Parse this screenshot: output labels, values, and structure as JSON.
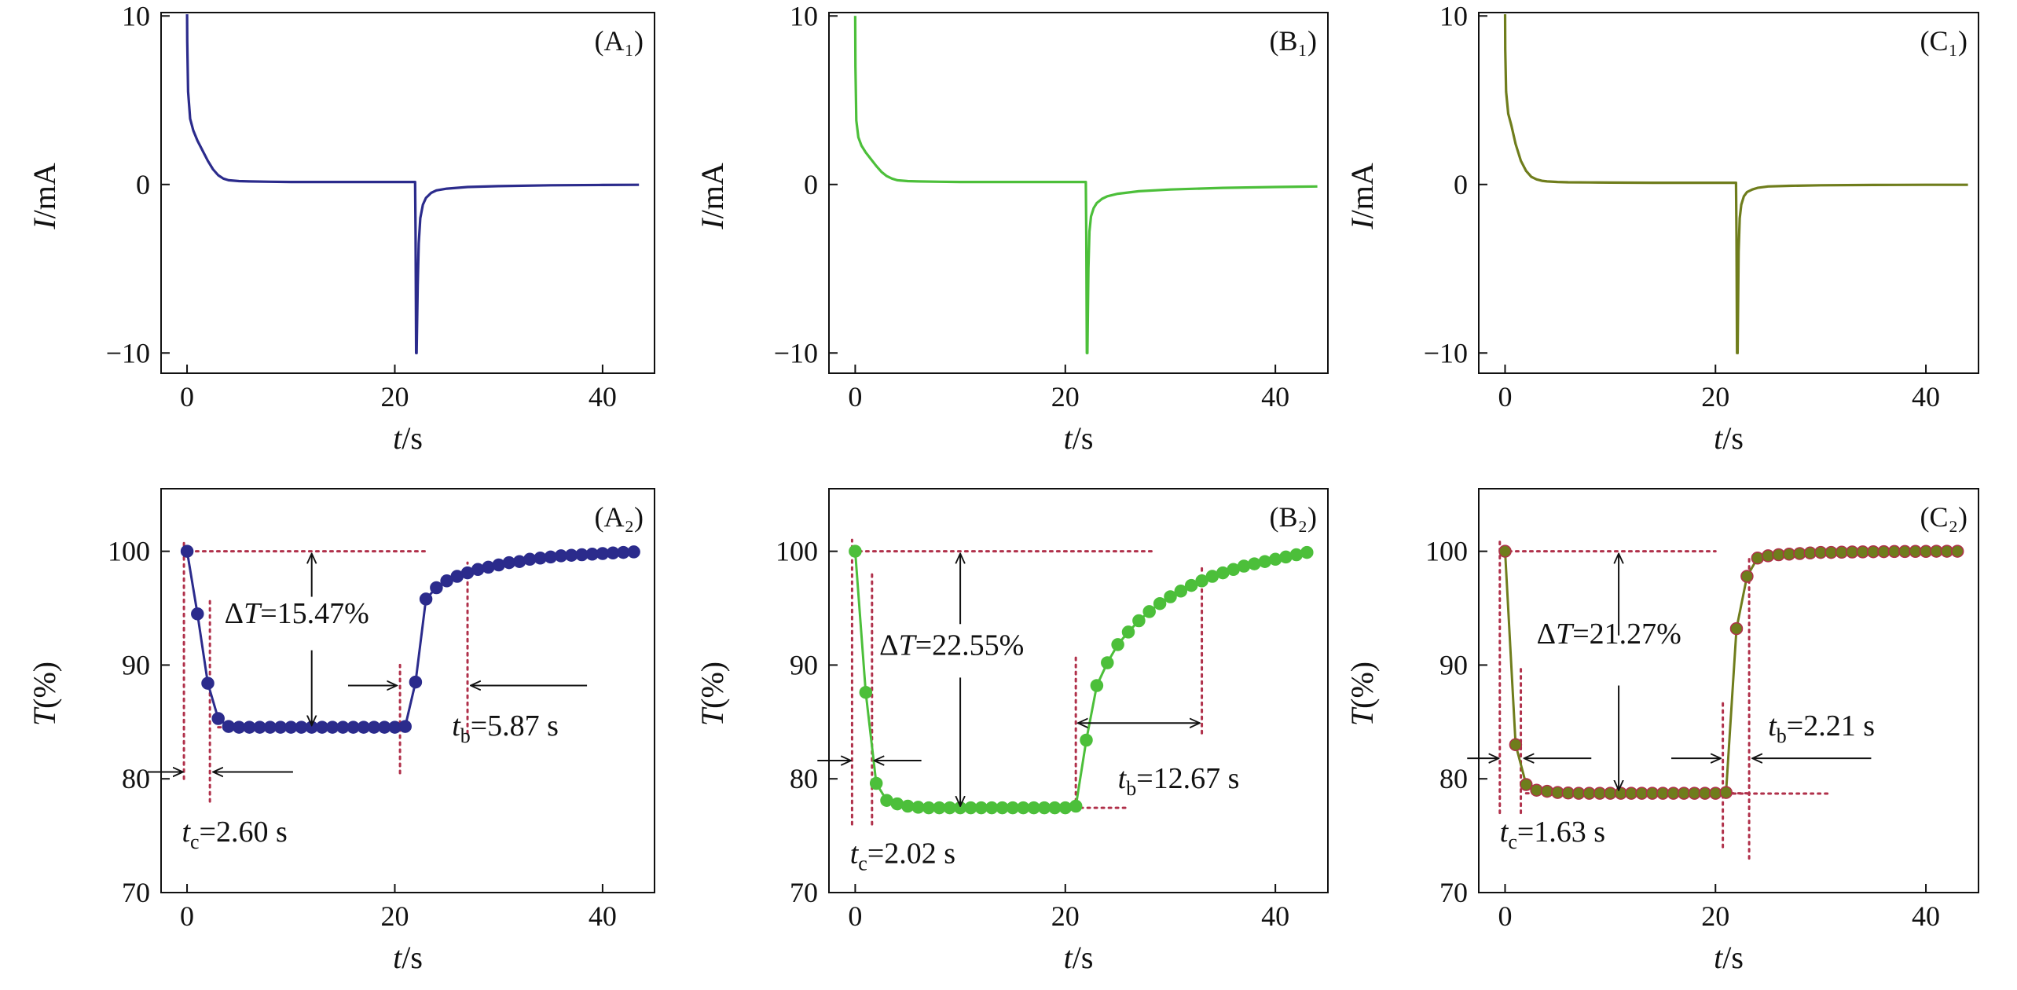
{
  "figure": {
    "colors": {
      "A": "#2b2b8c",
      "B": "#4cbf3a",
      "C": "#6f7d1c",
      "guide": "#b0304a",
      "axis": "#111111",
      "arrow": "#111111",
      "marker_edge_C": "#b0304a"
    }
  },
  "chart_data": [
    {
      "id": "A1",
      "type": "line",
      "panel_label": "(A₁)",
      "xlabel": "t/s",
      "ylabel": "I/mA",
      "xlim": [
        -2.5,
        45
      ],
      "ylim": [
        -11.2,
        10.2
      ],
      "xticks": [
        0,
        20,
        40
      ],
      "yticks": [
        -10,
        0,
        10
      ],
      "series": [
        {
          "name": "A1",
          "color_key": "A",
          "x": [
            0,
            0.02,
            0.1,
            0.3,
            0.6,
            1.0,
            1.5,
            2.0,
            2.5,
            3.0,
            3.5,
            4.0,
            5.0,
            6.0,
            8.0,
            10.0,
            14.0,
            18.0,
            21.8,
            21.95,
            22.0,
            22.05,
            22.1,
            22.2,
            22.3,
            22.45,
            22.7,
            23.0,
            23.5,
            24.0,
            25.0,
            27.0,
            30.0,
            35.0,
            40.0,
            43.5
          ],
          "y": [
            10.1,
            8.5,
            5.5,
            3.9,
            3.2,
            2.6,
            2.0,
            1.4,
            0.9,
            0.55,
            0.35,
            0.25,
            0.2,
            0.18,
            0.16,
            0.15,
            0.15,
            0.15,
            0.15,
            0.15,
            -3.0,
            -10.0,
            -10.0,
            -6.0,
            -3.5,
            -2.0,
            -1.2,
            -0.8,
            -0.5,
            -0.35,
            -0.25,
            -0.15,
            -0.1,
            -0.05,
            -0.03,
            -0.02
          ]
        }
      ]
    },
    {
      "id": "B1",
      "type": "line",
      "panel_label": "(B₁)",
      "xlabel": "t/s",
      "ylabel": "I/mA",
      "xlim": [
        -2.5,
        45
      ],
      "ylim": [
        -11.2,
        10.2
      ],
      "xticks": [
        0,
        20,
        40
      ],
      "yticks": [
        -10,
        0,
        10
      ],
      "series": [
        {
          "name": "B1",
          "color_key": "B",
          "x": [
            0,
            0.02,
            0.1,
            0.3,
            0.6,
            1.0,
            1.5,
            2.0,
            2.5,
            3.0,
            3.5,
            4.0,
            5.0,
            6.0,
            8.0,
            10.0,
            14.0,
            18.0,
            21.8,
            21.95,
            22.0,
            22.05,
            22.1,
            22.2,
            22.3,
            22.45,
            22.7,
            23.0,
            23.5,
            24.0,
            25.0,
            27.0,
            30.0,
            35.0,
            40.0,
            44.0
          ],
          "y": [
            10.0,
            7.0,
            3.8,
            2.8,
            2.3,
            1.9,
            1.5,
            1.1,
            0.75,
            0.5,
            0.35,
            0.25,
            0.2,
            0.18,
            0.16,
            0.15,
            0.15,
            0.15,
            0.15,
            0.15,
            -3.0,
            -10.0,
            -10.0,
            -5.0,
            -2.8,
            -1.9,
            -1.4,
            -1.1,
            -0.85,
            -0.7,
            -0.55,
            -0.4,
            -0.3,
            -0.2,
            -0.15,
            -0.12
          ]
        }
      ]
    },
    {
      "id": "C1",
      "type": "line",
      "panel_label": "(C₁)",
      "xlabel": "t/s",
      "ylabel": "I/mA",
      "xlim": [
        -2.5,
        45
      ],
      "ylim": [
        -11.2,
        10.2
      ],
      "xticks": [
        0,
        20,
        40
      ],
      "yticks": [
        -10,
        0,
        10
      ],
      "series": [
        {
          "name": "C1",
          "color_key": "C",
          "x": [
            0,
            0.02,
            0.1,
            0.3,
            0.6,
            1.0,
            1.5,
            2.0,
            2.5,
            3.0,
            3.5,
            4.0,
            5.0,
            6.0,
            8.0,
            10.0,
            14.0,
            18.0,
            21.8,
            21.95,
            22.0,
            22.05,
            22.1,
            22.2,
            22.3,
            22.45,
            22.7,
            23.0,
            23.5,
            24.0,
            25.0,
            27.0,
            30.0,
            35.0,
            40.0,
            44.0
          ],
          "y": [
            10.1,
            8.0,
            5.5,
            4.2,
            3.5,
            2.4,
            1.4,
            0.8,
            0.45,
            0.3,
            0.22,
            0.18,
            0.15,
            0.13,
            0.12,
            0.11,
            0.1,
            0.1,
            0.1,
            0.1,
            -3.0,
            -10.0,
            -10.0,
            -4.0,
            -2.0,
            -1.2,
            -0.7,
            -0.45,
            -0.3,
            -0.2,
            -0.12,
            -0.08,
            -0.05,
            -0.03,
            -0.02,
            -0.02
          ]
        }
      ]
    },
    {
      "id": "A2",
      "type": "line",
      "panel_label": "(A₂)",
      "xlabel": "t/s",
      "ylabel": "T(%)",
      "xlim": [
        -2.5,
        45
      ],
      "ylim": [
        70,
        105.5
      ],
      "xticks": [
        0,
        20,
        40
      ],
      "yticks": [
        70,
        80,
        90,
        100
      ],
      "series": [
        {
          "name": "A2",
          "color_key": "A",
          "x": [
            0,
            1,
            2,
            3,
            4,
            5,
            6,
            7,
            8,
            9,
            10,
            11,
            12,
            13,
            14,
            15,
            16,
            17,
            18,
            19,
            20,
            21,
            22,
            23,
            24,
            25,
            26,
            27,
            28,
            29,
            30,
            31,
            32,
            33,
            34,
            35,
            36,
            37,
            38,
            39,
            40,
            41,
            42,
            43
          ],
          "y": [
            100.0,
            94.5,
            88.4,
            85.3,
            84.6,
            84.53,
            84.53,
            84.53,
            84.53,
            84.53,
            84.53,
            84.53,
            84.53,
            84.53,
            84.53,
            84.53,
            84.53,
            84.53,
            84.53,
            84.53,
            84.53,
            84.6,
            88.5,
            95.8,
            96.8,
            97.4,
            97.8,
            98.1,
            98.4,
            98.6,
            98.8,
            99.0,
            99.1,
            99.3,
            99.4,
            99.5,
            99.6,
            99.65,
            99.7,
            99.75,
            99.8,
            99.85,
            99.9,
            99.95
          ]
        }
      ],
      "guides": [
        [
          -0.5,
          100,
          23,
          100
        ],
        [
          -0.3,
          80,
          -0.3,
          101
        ],
        [
          2.2,
          78,
          2.2,
          96
        ],
        [
          3,
          84.53,
          21,
          84.53
        ],
        [
          20.5,
          80.5,
          20.5,
          90
        ],
        [
          27,
          84,
          27,
          99
        ]
      ],
      "arrows": [
        {
          "x1": 12,
          "y1": 99.8,
          "x2": 12,
          "y2": 96,
          "head": "start"
        },
        {
          "x1": 12,
          "y1": 91.3,
          "x2": 12,
          "y2": 84.7,
          "head": "end"
        },
        {
          "x1": -3.8,
          "y1": 80.6,
          "x2": -0.4,
          "y2": 80.6,
          "head": "end"
        },
        {
          "x1": 10.2,
          "y1": 80.6,
          "x2": 2.5,
          "y2": 80.6,
          "head": "end"
        },
        {
          "x1": 15.5,
          "y1": 88.2,
          "x2": 20.2,
          "y2": 88.2,
          "head": "end"
        },
        {
          "x1": 38.5,
          "y1": 88.2,
          "x2": 27.3,
          "y2": 88.2,
          "head": "end"
        }
      ],
      "annotations": [
        {
          "pre": "Δ",
          "it": "T",
          "sub": "",
          "post": "=15.47%",
          "x": 3.6,
          "y": 93.7
        },
        {
          "pre": "",
          "it": "t",
          "sub": "b",
          "post": "=5.87 s",
          "x": 25.5,
          "y": 83.8
        },
        {
          "pre": "",
          "it": "t",
          "sub": "c",
          "post": "=2.60 s",
          "x": -0.5,
          "y": 74.5
        }
      ]
    },
    {
      "id": "B2",
      "type": "line",
      "panel_label": "(B₂)",
      "xlabel": "t/s",
      "ylabel": "T(%)",
      "xlim": [
        -2.5,
        45
      ],
      "ylim": [
        70,
        105.5
      ],
      "xticks": [
        0,
        20,
        40
      ],
      "yticks": [
        70,
        80,
        90,
        100
      ],
      "series": [
        {
          "name": "B2",
          "color_key": "B",
          "x": [
            0,
            1,
            2,
            3,
            4,
            5,
            6,
            7,
            8,
            9,
            10,
            11,
            12,
            13,
            14,
            15,
            16,
            17,
            18,
            19,
            20,
            21,
            22,
            23,
            24,
            25,
            26,
            27,
            28,
            29,
            30,
            31,
            32,
            33,
            34,
            35,
            36,
            37,
            38,
            39,
            40,
            41,
            42,
            43
          ],
          "y": [
            100.0,
            87.6,
            79.6,
            78.1,
            77.8,
            77.6,
            77.5,
            77.45,
            77.45,
            77.45,
            77.45,
            77.45,
            77.45,
            77.45,
            77.45,
            77.45,
            77.45,
            77.45,
            77.45,
            77.45,
            77.45,
            77.6,
            83.4,
            88.2,
            90.2,
            91.8,
            92.9,
            93.9,
            94.7,
            95.4,
            96.0,
            96.5,
            97.0,
            97.4,
            97.8,
            98.1,
            98.4,
            98.7,
            98.9,
            99.1,
            99.3,
            99.5,
            99.7,
            99.9
          ]
        }
      ],
      "guides": [
        [
          -0.3,
          100,
          28.5,
          100
        ],
        [
          -0.3,
          76,
          -0.3,
          101
        ],
        [
          1.6,
          76,
          1.6,
          98
        ],
        [
          10,
          77.45,
          26,
          77.45
        ],
        [
          21,
          78,
          21,
          91
        ],
        [
          33,
          84,
          33,
          98.5
        ]
      ],
      "arrows": [
        {
          "x1": 10,
          "y1": 99.8,
          "x2": 10,
          "y2": 93.6,
          "head": "start"
        },
        {
          "x1": 10,
          "y1": 88.9,
          "x2": 10,
          "y2": 77.6,
          "head": "end"
        },
        {
          "x1": -3.6,
          "y1": 81.6,
          "x2": -0.4,
          "y2": 81.6,
          "head": "end"
        },
        {
          "x1": 6.3,
          "y1": 81.6,
          "x2": 1.8,
          "y2": 81.6,
          "head": "end"
        },
        {
          "x1": 21.2,
          "y1": 84.9,
          "x2": 32.8,
          "y2": 84.9,
          "head": "both"
        }
      ],
      "annotations": [
        {
          "pre": "Δ",
          "it": "T",
          "sub": "",
          "post": "=22.55%",
          "x": 2.3,
          "y": 90.9
        },
        {
          "pre": "",
          "it": "t",
          "sub": "b",
          "post": "=12.67 s",
          "x": 25.0,
          "y": 79.2
        },
        {
          "pre": "",
          "it": "t",
          "sub": "c",
          "post": "=2.02 s",
          "x": -0.5,
          "y": 72.6
        }
      ]
    },
    {
      "id": "C2",
      "type": "line",
      "panel_label": "(C₂)",
      "xlabel": "t/s",
      "ylabel": "T(%)",
      "xlim": [
        -2.5,
        45
      ],
      "ylim": [
        70,
        105.5
      ],
      "xticks": [
        0,
        20,
        40
      ],
      "yticks": [
        70,
        80,
        90,
        100
      ],
      "series": [
        {
          "name": "C2",
          "color_key": "C",
          "x": [
            0,
            1,
            2,
            3,
            4,
            5,
            6,
            7,
            8,
            9,
            10,
            11,
            12,
            13,
            14,
            15,
            16,
            17,
            18,
            19,
            20,
            21,
            22,
            23,
            24,
            25,
            26,
            27,
            28,
            29,
            30,
            31,
            32,
            33,
            34,
            35,
            36,
            37,
            38,
            39,
            40,
            41,
            42,
            43
          ],
          "y": [
            100.0,
            83.0,
            79.5,
            79.0,
            78.9,
            78.8,
            78.75,
            78.73,
            78.73,
            78.73,
            78.73,
            78.73,
            78.73,
            78.73,
            78.73,
            78.73,
            78.73,
            78.73,
            78.73,
            78.73,
            78.73,
            78.8,
            93.2,
            97.8,
            99.4,
            99.6,
            99.7,
            99.75,
            99.8,
            99.85,
            99.9,
            99.9,
            99.92,
            99.94,
            99.95,
            99.96,
            99.97,
            99.98,
            99.98,
            99.99,
            99.99,
            100.0,
            100.0,
            100.0
          ]
        }
      ],
      "guides": [
        [
          -0.3,
          100,
          20,
          100
        ],
        [
          -0.5,
          77,
          -0.5,
          101
        ],
        [
          1.5,
          77,
          1.5,
          90
        ],
        [
          2,
          78.73,
          23,
          78.73
        ],
        [
          21,
          78.7,
          31,
          78.7
        ],
        [
          20.7,
          74,
          20.7,
          87
        ],
        [
          23.2,
          73,
          23.2,
          99.5
        ]
      ],
      "arrows": [
        {
          "x1": 10.8,
          "y1": 99.8,
          "x2": 10.8,
          "y2": 92.6,
          "head": "start"
        },
        {
          "x1": 10.8,
          "y1": 88.2,
          "x2": 10.8,
          "y2": 79.0,
          "head": "end"
        },
        {
          "x1": -3.6,
          "y1": 81.8,
          "x2": -0.6,
          "y2": 81.8,
          "head": "end"
        },
        {
          "x1": 8.2,
          "y1": 81.8,
          "x2": 1.8,
          "y2": 81.8,
          "head": "end"
        },
        {
          "x1": 15.8,
          "y1": 81.8,
          "x2": 20.5,
          "y2": 81.8,
          "head": "end"
        },
        {
          "x1": 34.8,
          "y1": 81.8,
          "x2": 23.5,
          "y2": 81.8,
          "head": "end"
        }
      ],
      "annotations": [
        {
          "pre": "Δ",
          "it": "T",
          "sub": "",
          "post": "=21.27%",
          "x": 3.0,
          "y": 91.9
        },
        {
          "pre": "",
          "it": "t",
          "sub": "b",
          "post": "=2.21 s",
          "x": 25.0,
          "y": 83.8
        },
        {
          "pre": "",
          "it": "t",
          "sub": "c",
          "post": "=1.63 s",
          "x": -0.5,
          "y": 74.5
        }
      ]
    }
  ]
}
